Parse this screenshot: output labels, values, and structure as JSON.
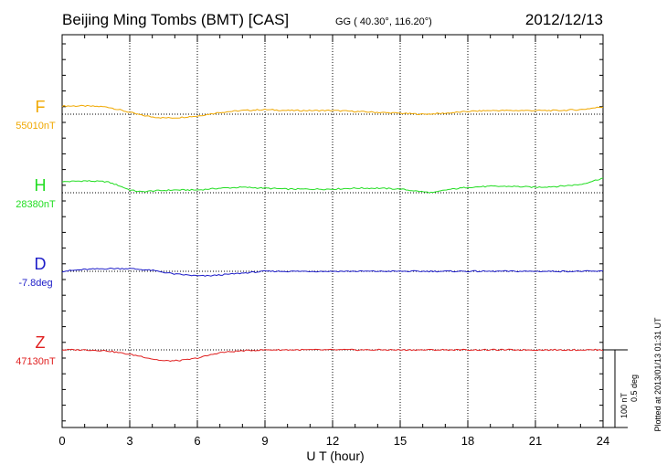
{
  "header": {
    "station": "Beijing Ming Tombs (BMT)  [CAS]",
    "coords": "GG ( 40.30°, 116.20°)",
    "date": "2012/12/13"
  },
  "chart_data": {
    "type": "line",
    "xlabel": "U T (hour)",
    "xlim": [
      0,
      24
    ],
    "xticks": [
      "0",
      "3",
      "6",
      "9",
      "12",
      "15",
      "18",
      "21",
      "24"
    ],
    "grid": true,
    "scale_bar": {
      "label1": "100 nT",
      "label2": "0.5 deg"
    },
    "plotted_note": "Plotted at 2013/01/13 01:31  UT",
    "series": [
      {
        "name": "F",
        "baseline_label": "55010nT",
        "color": "#f0a800",
        "x": [
          0,
          1,
          2,
          2.5,
          3,
          3.5,
          4,
          4.5,
          5,
          5.5,
          6,
          6.5,
          7,
          8,
          9,
          10,
          11,
          12,
          13,
          14,
          15,
          16,
          17,
          18,
          19,
          20,
          21,
          22,
          23,
          24
        ],
        "y": [
          9,
          9,
          8,
          5,
          2,
          -1,
          -3,
          -4,
          -4,
          -3,
          -2,
          0,
          2,
          4,
          5,
          4,
          4,
          4,
          3,
          2,
          1,
          0,
          1,
          3,
          4,
          4,
          4,
          4,
          5,
          8
        ]
      },
      {
        "name": "H",
        "baseline_label": "28380nT",
        "color": "#22dd22",
        "x": [
          0,
          1,
          2,
          2.5,
          3,
          3.5,
          4,
          5,
          6,
          7,
          8,
          9,
          10,
          11,
          12,
          13,
          14,
          15,
          16,
          16.5,
          17,
          18,
          19,
          20,
          21,
          22,
          23,
          24
        ],
        "y": [
          12,
          13,
          12,
          8,
          3,
          1,
          2,
          3,
          3,
          5,
          6,
          5,
          4,
          4,
          4,
          5,
          5,
          4,
          1,
          0,
          3,
          6,
          7,
          7,
          6,
          7,
          9,
          16
        ]
      },
      {
        "name": "D",
        "baseline_label": "-7.8deg",
        "color": "#1c1cc8",
        "x": [
          0,
          1,
          2,
          3,
          4,
          5,
          6,
          6.5,
          7,
          8,
          9,
          10,
          12,
          14,
          16,
          18,
          20,
          22,
          24
        ],
        "y": [
          0,
          2,
          3,
          3,
          1,
          -3,
          -5,
          -5,
          -4,
          -2,
          0,
          0,
          0,
          0,
          0,
          0,
          0,
          0,
          0
        ]
      },
      {
        "name": "Z",
        "baseline_label": "47130nT",
        "color": "#e02020",
        "x": [
          0,
          1,
          2,
          3,
          3.5,
          4,
          4.5,
          5,
          5.5,
          6,
          6.5,
          7,
          8,
          9,
          10,
          12,
          14,
          16,
          18,
          20,
          22,
          24
        ],
        "y": [
          0,
          0,
          -1,
          -5,
          -7,
          -10,
          -12,
          -12,
          -11,
          -9,
          -6,
          -3,
          -1,
          0,
          0,
          0,
          0,
          0,
          0,
          0,
          0,
          0
        ]
      }
    ]
  }
}
